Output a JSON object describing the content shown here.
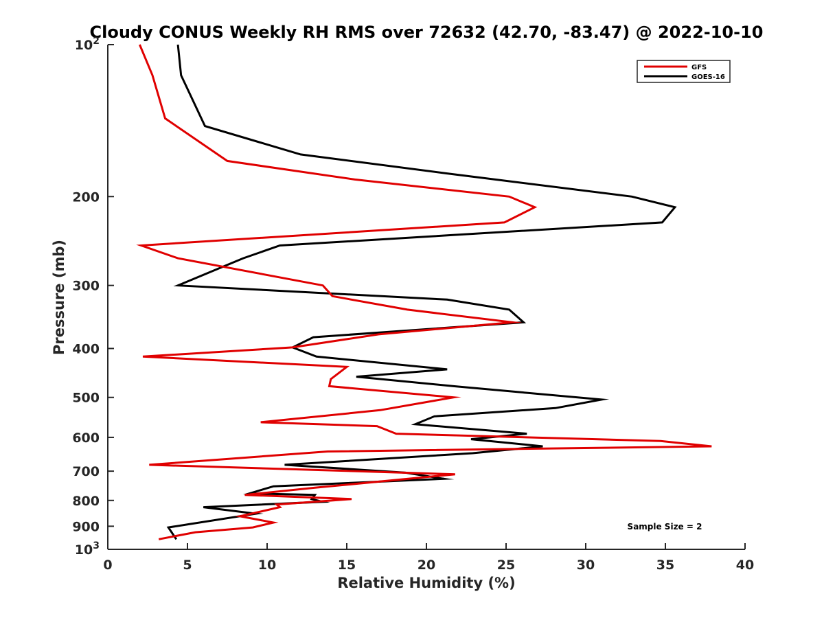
{
  "chart_data": {
    "type": "line",
    "title": "Cloudy CONUS Weekly RH RMS over 72632 (42.70, -83.47) @ 2022-10-10",
    "xlabel": "Relative Humidity (%)",
    "ylabel": "Pressure (mb)",
    "xlim": [
      0,
      40
    ],
    "ylim": [
      100,
      1000
    ],
    "y_scale": "log",
    "y_reversed": true,
    "grid": false,
    "legend_position": "top-right",
    "x_ticks": [
      0,
      5,
      10,
      15,
      20,
      25,
      30,
      35,
      40
    ],
    "y_ticks": [
      {
        "value": 100,
        "label": "10",
        "sup": "2"
      },
      {
        "value": 200,
        "label": "200"
      },
      {
        "value": 300,
        "label": "300"
      },
      {
        "value": 400,
        "label": "400"
      },
      {
        "value": 500,
        "label": "500"
      },
      {
        "value": 600,
        "label": "600"
      },
      {
        "value": 700,
        "label": "700"
      },
      {
        "value": 800,
        "label": "800"
      },
      {
        "value": 900,
        "label": "900"
      },
      {
        "value": 1000,
        "label": "10",
        "sup": "3"
      }
    ],
    "annotation": "Sample Size = 2",
    "series": [
      {
        "name": "GFS",
        "color": "#e00000",
        "x": [
          2.0,
          2.8,
          3.6,
          7.5,
          15.5,
          25.2,
          26.8,
          24.9,
          2.1,
          4.4,
          13.5,
          14.1,
          18.8,
          25.4,
          17.0,
          11.6,
          2.2,
          15.0,
          14.0,
          13.9,
          21.7,
          17.1,
          9.6,
          16.9,
          18.1,
          34.7,
          37.9,
          13.8,
          2.6,
          21.8,
          13.0,
          8.6,
          15.3,
          10.6,
          10.8,
          8.3,
          10.4,
          9.1,
          5.5,
          3.2
        ],
        "y": [
          100,
          115,
          140,
          170,
          185,
          200,
          210,
          225,
          250,
          265,
          300,
          315,
          335,
          355,
          375,
          398,
          415,
          435,
          460,
          475,
          500,
          530,
          560,
          570,
          590,
          610,
          625,
          640,
          680,
          710,
          755,
          780,
          795,
          815,
          825,
          860,
          885,
          905,
          925,
          955
        ]
      },
      {
        "name": "GOES-16",
        "color": "#000000",
        "x": [
          4.4,
          4.6,
          6.1,
          12.1,
          21.3,
          32.9,
          35.6,
          34.8,
          10.8,
          8.5,
          4.4,
          21.3,
          25.2,
          26.1,
          12.9,
          11.6,
          13.1,
          21.3,
          15.6,
          21.7,
          31.0,
          28.1,
          20.5,
          19.3,
          26.3,
          22.8,
          27.3,
          22.9,
          11.1,
          18.7,
          21.1,
          10.4,
          8.9,
          13.0,
          12.8,
          13.5,
          6.0,
          9.3,
          3.8,
          4.3
        ],
        "y": [
          100,
          115,
          145,
          165,
          180,
          200,
          210,
          225,
          250,
          265,
          300,
          320,
          335,
          355,
          380,
          398,
          415,
          440,
          455,
          475,
          505,
          525,
          545,
          565,
          590,
          605,
          625,
          645,
          680,
          705,
          725,
          750,
          775,
          780,
          795,
          805,
          825,
          850,
          905,
          955
        ]
      }
    ]
  }
}
